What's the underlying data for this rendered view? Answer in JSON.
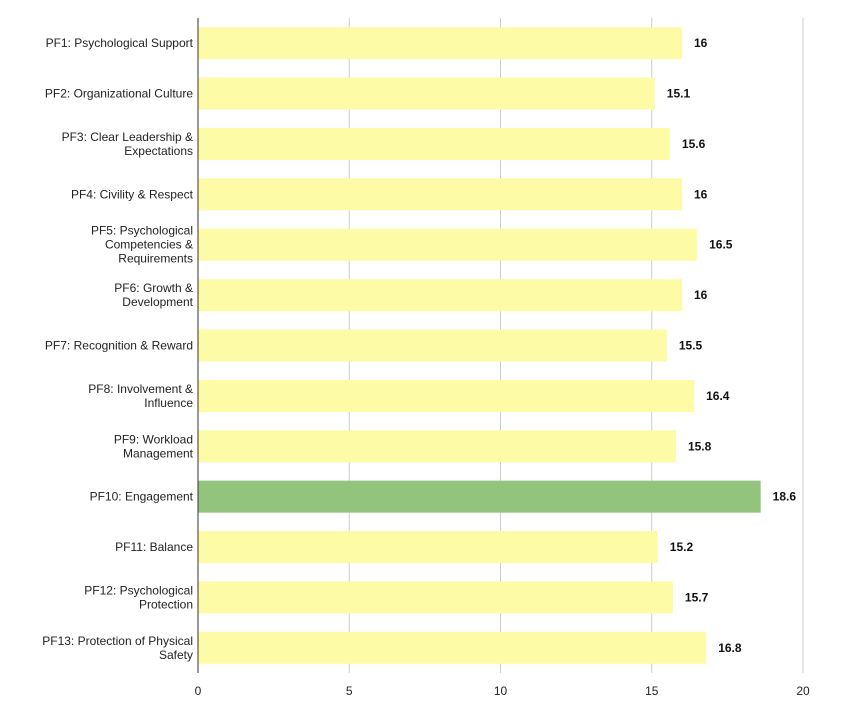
{
  "chart_data": {
    "type": "bar",
    "orientation": "horizontal",
    "categories": [
      [
        "PF1: Psychological Support"
      ],
      [
        "PF2: Organizational Culture"
      ],
      [
        "PF3: Clear Leadership &",
        "Expectations"
      ],
      [
        "PF4: Civility & Respect"
      ],
      [
        "PF5: Psychological",
        "Competencies &",
        "Requirements"
      ],
      [
        "PF6: Growth &",
        "Development"
      ],
      [
        "PF7: Recognition & Reward"
      ],
      [
        "PF8: Involvement &",
        "Influence"
      ],
      [
        "PF9: Workload",
        "Management"
      ],
      [
        "PF10: Engagement"
      ],
      [
        "PF11: Balance"
      ],
      [
        "PF12: Psychological",
        "Protection"
      ],
      [
        "PF13: Protection of Physical",
        "Safety"
      ]
    ],
    "values": [
      16,
      15.1,
      15.6,
      16,
      16.5,
      16,
      15.5,
      16.4,
      15.8,
      18.6,
      15.2,
      15.7,
      16.8
    ],
    "value_labels": [
      "16",
      "15.1",
      "15.6",
      "16",
      "16.5",
      "16",
      "15.5",
      "16.4",
      "15.8",
      "18.6",
      "15.2",
      "15.7",
      "16.8"
    ],
    "bar_colors": [
      "#fdfba6",
      "#fdfba6",
      "#fdfba6",
      "#fdfba6",
      "#fdfba6",
      "#fdfba6",
      "#fdfba6",
      "#fdfba6",
      "#fdfba6",
      "#93c47d",
      "#fdfba6",
      "#fdfba6",
      "#fdfba6"
    ],
    "xlim": [
      0,
      20
    ],
    "xticks": [
      0,
      5,
      10,
      15,
      20
    ],
    "grid": "vertical",
    "title": "",
    "xlabel": "",
    "ylabel": ""
  }
}
